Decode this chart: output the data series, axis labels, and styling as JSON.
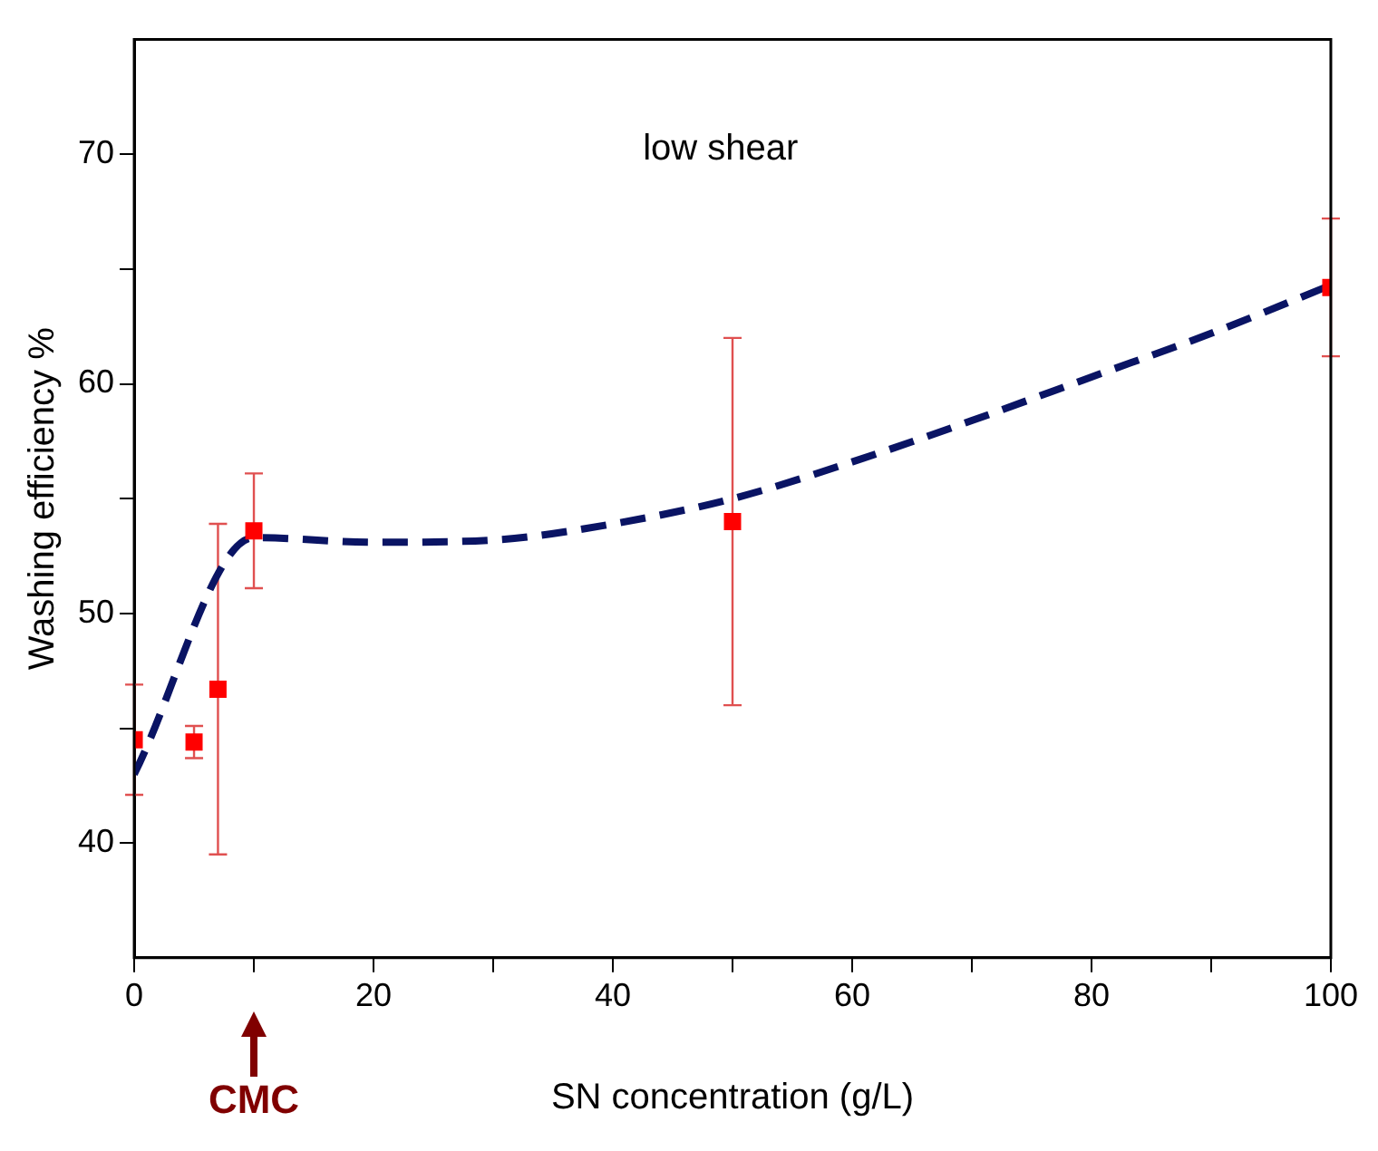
{
  "chart_data": {
    "type": "scatter",
    "xlabel": "SN concentration (g/L)",
    "ylabel": "Washing efficiency %",
    "xlim": [
      0,
      100
    ],
    "ylim": [
      35,
      75
    ],
    "xticks": [
      0,
      {
        "value": 10,
        "label": null
      },
      20,
      {
        "value": 30,
        "label": null
      },
      40,
      {
        "value": 50,
        "label": null
      },
      60,
      {
        "value": 70,
        "label": null
      },
      80,
      {
        "value": 90,
        "label": null
      },
      100
    ],
    "yticks": [
      40,
      {
        "value": 45,
        "label": null
      },
      50,
      {
        "value": 55,
        "label": null
      },
      60,
      {
        "value": 65,
        "label": null
      },
      70
    ],
    "series": [
      {
        "color": "#ff0000",
        "x": [
          0,
          5,
          7,
          10,
          50,
          100
        ],
        "values": [
          44.5,
          44.4,
          46.7,
          53.6,
          54.0,
          64.2
        ],
        "errors": [
          2.4,
          0.7,
          7.2,
          2.5,
          8,
          3
        ],
        "marker": "square"
      },
      {
        "type": "line",
        "color": "#0a1464",
        "line_style": "dashed",
        "marker": "none",
        "x": [
          0,
          10,
          20,
          30,
          40,
          50,
          60,
          70,
          80,
          90,
          100
        ],
        "values": [
          43.0,
          53.3,
          53.1,
          53.2,
          53.9,
          55.0,
          56.6,
          58.4,
          60.3,
          62.2,
          64.3
        ]
      }
    ],
    "annotations": [
      "low shear",
      "CMC"
    ]
  }
}
